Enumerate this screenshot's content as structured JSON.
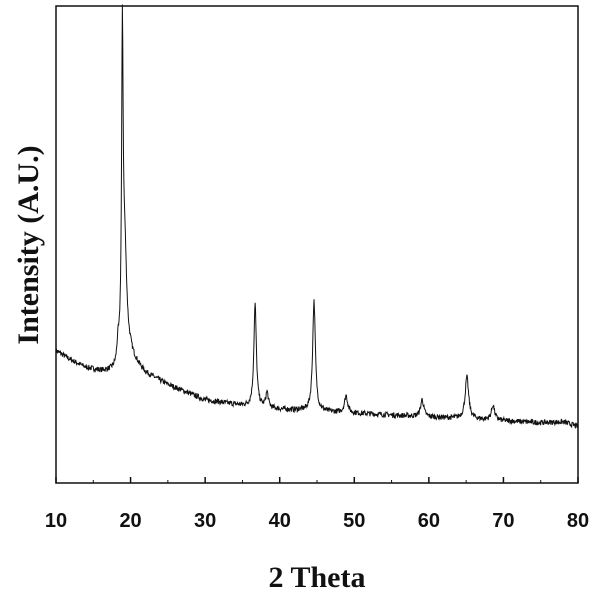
{
  "chart_data": {
    "type": "line",
    "xlabel": "2 Theta",
    "ylabel": "Intensity (A.U.)",
    "xlim": [
      10,
      80
    ],
    "ylim": [
      0,
      100
    ],
    "x_ticks": [
      10,
      20,
      30,
      40,
      50,
      60,
      70,
      80
    ],
    "grid": false,
    "line_color": "#111111",
    "background": [
      [
        10.0,
        22.0
      ],
      [
        12.0,
        19.5
      ],
      [
        14.0,
        17.5
      ],
      [
        16.0,
        16.5
      ],
      [
        18.0,
        16.0
      ],
      [
        20.0,
        20.0
      ],
      [
        22.0,
        16.0
      ],
      [
        25.0,
        13.0
      ],
      [
        30.0,
        9.0
      ],
      [
        35.0,
        7.5
      ],
      [
        40.0,
        6.5
      ],
      [
        45.0,
        6.0
      ],
      [
        50.0,
        5.5
      ],
      [
        55.0,
        5.0
      ],
      [
        60.0,
        4.5
      ],
      [
        65.0,
        4.0
      ],
      [
        70.0,
        3.5
      ],
      [
        75.0,
        3.0
      ],
      [
        78.0,
        3.2
      ],
      [
        80.0,
        2.0
      ]
    ],
    "peaks": [
      {
        "pos": 18.9,
        "height": 78,
        "width": 0.12
      },
      {
        "pos": 19.2,
        "height": 30,
        "width": 0.35
      },
      {
        "pos": 18.3,
        "height": 4,
        "width": 0.15
      },
      {
        "pos": 36.7,
        "height": 27,
        "width": 0.2
      },
      {
        "pos": 38.3,
        "height": 4,
        "width": 0.2
      },
      {
        "pos": 44.6,
        "height": 29,
        "width": 0.22
      },
      {
        "pos": 48.9,
        "height": 4.5,
        "width": 0.25
      },
      {
        "pos": 59.1,
        "height": 4.5,
        "width": 0.25
      },
      {
        "pos": 65.1,
        "height": 11,
        "width": 0.28
      },
      {
        "pos": 68.6,
        "height": 4,
        "width": 0.25
      }
    ],
    "noise": 0.7
  }
}
